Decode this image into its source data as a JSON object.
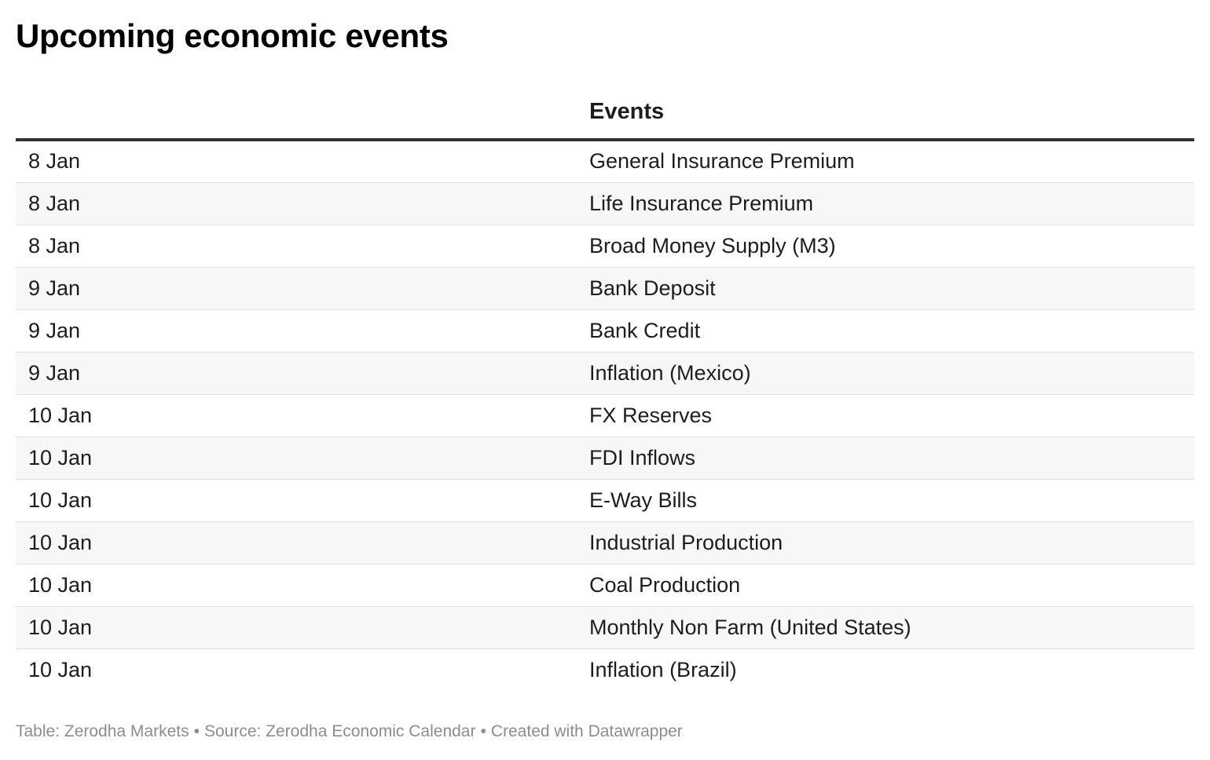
{
  "title": "Upcoming economic events",
  "table": {
    "columns": [
      "",
      "Events"
    ],
    "rows": [
      {
        "date": "8 Jan",
        "event": "General Insurance Premium"
      },
      {
        "date": "8 Jan",
        "event": "Life Insurance Premium"
      },
      {
        "date": "8 Jan",
        "event": "Broad Money Supply (M3)"
      },
      {
        "date": "9 Jan",
        "event": "Bank Deposit"
      },
      {
        "date": "9 Jan",
        "event": "Bank Credit"
      },
      {
        "date": "9 Jan",
        "event": "Inflation (Mexico)"
      },
      {
        "date": "10 Jan",
        "event": "FX Reserves"
      },
      {
        "date": "10 Jan",
        "event": "FDI Inflows"
      },
      {
        "date": "10 Jan",
        "event": "E-Way Bills"
      },
      {
        "date": "10 Jan",
        "event": "Industrial Production"
      },
      {
        "date": "10 Jan",
        "event": "Coal Production"
      },
      {
        "date": "10 Jan",
        "event": "Monthly Non Farm (United States)"
      },
      {
        "date": "10 Jan",
        "event": "Inflation (Brazil)"
      }
    ]
  },
  "footer": {
    "table_credit": "Table: Zerodha Markets",
    "source": "Source: Zerodha Economic Calendar",
    "created_with": "Created with Datawrapper",
    "separator": "•"
  },
  "colors": {
    "header_rule": "#333333",
    "row_divider": "#dedede",
    "zebra_row": "#f7f7f7",
    "footer_text": "#8c8c8c"
  }
}
